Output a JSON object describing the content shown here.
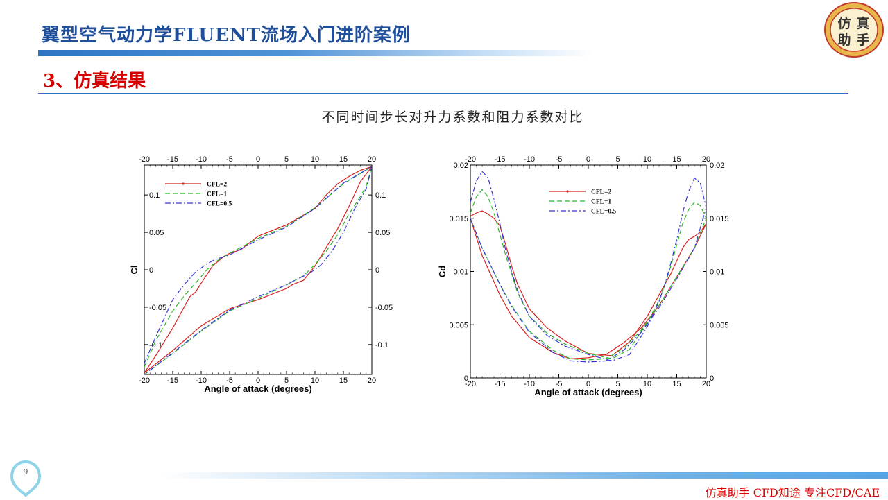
{
  "slide": {
    "title": "翼型空气动力学FLUENT流场入门进阶案例",
    "section_heading": "3、仿真结果",
    "subtitle": "不同时间步长对升力系数和阻力系数对比",
    "page_number": "9",
    "footer": "仿真助手 CFD知途 专注CFD/CAE",
    "logo_chars": [
      "仿",
      "真",
      "助",
      "手"
    ]
  },
  "colors": {
    "title": "#1f4e9a",
    "accent_red": "#d60000",
    "cfl2": "#d62020",
    "cfl1": "#2db52d",
    "cfl05": "#3535d8"
  },
  "chart_data": [
    {
      "type": "line",
      "xlabel": "Angle of attack (degrees)",
      "ylabel": "Cl",
      "xlim": [
        -20,
        20
      ],
      "ylim": [
        -0.14,
        0.14
      ],
      "xticks": [
        -20,
        -15,
        -10,
        -5,
        0,
        5,
        10,
        15,
        20
      ],
      "yticks": [
        -0.1,
        -0.05,
        0,
        0.05,
        0.1
      ],
      "ytick_labels": [
        "-0.1",
        "-0.05",
        "0",
        "0.05",
        "0.1"
      ],
      "mirror_axes": true,
      "grid": false,
      "legend_position": "top-left",
      "series": [
        {
          "name": "CFL=2",
          "color": "#d62020",
          "dash": "",
          "marker": true,
          "x": [
            -20,
            -18,
            -15,
            -13,
            -12,
            -11,
            -10,
            -8,
            -6,
            -5,
            -3,
            0,
            5,
            10,
            12,
            14,
            16,
            18,
            20,
            18,
            16,
            14,
            12,
            10,
            8,
            6,
            5,
            2,
            0,
            -5,
            -10,
            -15,
            -20
          ],
          "y": [
            -0.138,
            -0.115,
            -0.078,
            -0.05,
            -0.036,
            -0.03,
            -0.018,
            0.005,
            0.018,
            0.022,
            0.027,
            0.045,
            0.06,
            0.082,
            0.1,
            0.115,
            0.125,
            0.133,
            0.138,
            0.118,
            0.085,
            0.055,
            0.03,
            0.005,
            -0.014,
            -0.02,
            -0.025,
            -0.034,
            -0.04,
            -0.052,
            -0.075,
            -0.108,
            -0.138
          ]
        },
        {
          "name": "CFL=1",
          "color": "#2db52d",
          "dash": "7,4",
          "marker": false,
          "x": [
            -20,
            -18,
            -15,
            -13,
            -11,
            -9,
            -7,
            -5,
            0,
            5,
            10,
            15,
            20,
            19,
            18,
            16,
            14,
            12,
            10,
            8,
            5,
            0,
            -5,
            -10,
            -15,
            -20
          ],
          "y": [
            -0.13,
            -0.095,
            -0.055,
            -0.035,
            -0.018,
            0,
            0.013,
            0.022,
            0.042,
            0.058,
            0.083,
            0.115,
            0.138,
            0.112,
            0.098,
            0.075,
            0.047,
            0.025,
            0.007,
            -0.008,
            -0.02,
            -0.038,
            -0.055,
            -0.082,
            -0.112,
            -0.14
          ]
        },
        {
          "name": "CFL=0.5",
          "color": "#3535d8",
          "dash": "8,3,2,3",
          "marker": false,
          "x": [
            -20,
            -18,
            -15,
            -13,
            -11,
            -9,
            -8,
            -7,
            -5,
            0,
            5,
            10,
            15,
            20,
            19,
            17,
            15,
            13,
            11,
            9,
            7,
            5,
            0,
            -5,
            -10,
            -15,
            -20
          ],
          "y": [
            -0.125,
            -0.09,
            -0.04,
            -0.02,
            -0.003,
            0.008,
            0.012,
            0.015,
            0.02,
            0.04,
            0.057,
            0.082,
            0.116,
            0.138,
            0.108,
            0.082,
            0.05,
            0.025,
            0.006,
            -0.005,
            -0.012,
            -0.02,
            -0.036,
            -0.054,
            -0.081,
            -0.111,
            -0.14
          ]
        }
      ]
    },
    {
      "type": "line",
      "xlabel": "Angle of attack (degrees)",
      "ylabel": "Cd",
      "xlim": [
        -20,
        20
      ],
      "ylim": [
        0,
        0.02
      ],
      "xticks": [
        -20,
        -15,
        -10,
        -5,
        0,
        5,
        10,
        15,
        20
      ],
      "yticks": [
        0,
        0.005,
        0.01,
        0.015,
        0.02
      ],
      "ytick_labels": [
        "0",
        "0.005",
        "0.01",
        "0.015",
        "0.02"
      ],
      "mirror_axes": true,
      "grid": false,
      "legend_position": "top-center",
      "series": [
        {
          "name": "CFL=2",
          "color": "#d62020",
          "dash": "",
          "marker": true,
          "x": [
            -20,
            -19,
            -18,
            -17,
            -16,
            -15,
            -14,
            -13,
            -12,
            -10,
            -7,
            -4,
            0,
            4,
            7,
            10,
            12,
            13,
            14,
            15,
            16,
            17,
            18,
            19,
            20,
            18,
            15,
            12,
            9,
            6,
            3,
            0,
            -3,
            -6,
            -10,
            -13,
            -15,
            -18,
            -20
          ],
          "y": [
            0.0152,
            0.0155,
            0.0157,
            0.0154,
            0.015,
            0.0143,
            0.0125,
            0.0105,
            0.0088,
            0.0065,
            0.0047,
            0.0035,
            0.0023,
            0.0021,
            0.0034,
            0.0058,
            0.0078,
            0.0088,
            0.0098,
            0.011,
            0.0122,
            0.013,
            0.0133,
            0.0137,
            0.0145,
            0.0122,
            0.0095,
            0.0068,
            0.0047,
            0.0033,
            0.0022,
            0.0019,
            0.0018,
            0.0024,
            0.0038,
            0.0058,
            0.0078,
            0.0115,
            0.015
          ]
        },
        {
          "name": "CFL=1",
          "color": "#2db52d",
          "dash": "7,4",
          "marker": false,
          "x": [
            -20,
            -19,
            -18,
            -17,
            -16,
            -15,
            -14,
            -13,
            -12,
            -10,
            -7,
            -4,
            0,
            4,
            7,
            10,
            12,
            13,
            14,
            15,
            16,
            17,
            18,
            19,
            20,
            18,
            15,
            12,
            9,
            6,
            3,
            0,
            -3,
            -6,
            -10,
            -13,
            -15,
            -18,
            -20
          ],
          "y": [
            0.0155,
            0.017,
            0.0177,
            0.017,
            0.0155,
            0.0135,
            0.0115,
            0.0098,
            0.008,
            0.0058,
            0.0042,
            0.0032,
            0.0023,
            0.0018,
            0.0027,
            0.0052,
            0.0073,
            0.0088,
            0.0105,
            0.0125,
            0.0145,
            0.0158,
            0.0165,
            0.0162,
            0.015,
            0.0122,
            0.0095,
            0.0068,
            0.0045,
            0.0028,
            0.0018,
            0.0017,
            0.0018,
            0.0026,
            0.0044,
            0.0068,
            0.0088,
            0.0122,
            0.015
          ]
        },
        {
          "name": "CFL=0.5",
          "color": "#3535d8",
          "dash": "8,3,2,3",
          "marker": false,
          "x": [
            -20,
            -19,
            -18,
            -17,
            -16,
            -15,
            -14,
            -13,
            -12,
            -10,
            -7,
            -4,
            0,
            4,
            7,
            10,
            12,
            13,
            14,
            15,
            16,
            17,
            18,
            19,
            20,
            18,
            15,
            12,
            9,
            6,
            3,
            0,
            -3,
            -6,
            -10,
            -13,
            -15,
            -18,
            -20
          ],
          "y": [
            0.0165,
            0.0185,
            0.0194,
            0.0188,
            0.0168,
            0.0145,
            0.012,
            0.01,
            0.0082,
            0.0058,
            0.004,
            0.003,
            0.0022,
            0.0016,
            0.0022,
            0.0048,
            0.0072,
            0.0088,
            0.0108,
            0.013,
            0.0155,
            0.0175,
            0.0188,
            0.0183,
            0.016,
            0.0122,
            0.0093,
            0.0066,
            0.0043,
            0.0026,
            0.0016,
            0.0015,
            0.0016,
            0.0024,
            0.0043,
            0.0067,
            0.0088,
            0.0122,
            0.015
          ]
        }
      ]
    }
  ]
}
